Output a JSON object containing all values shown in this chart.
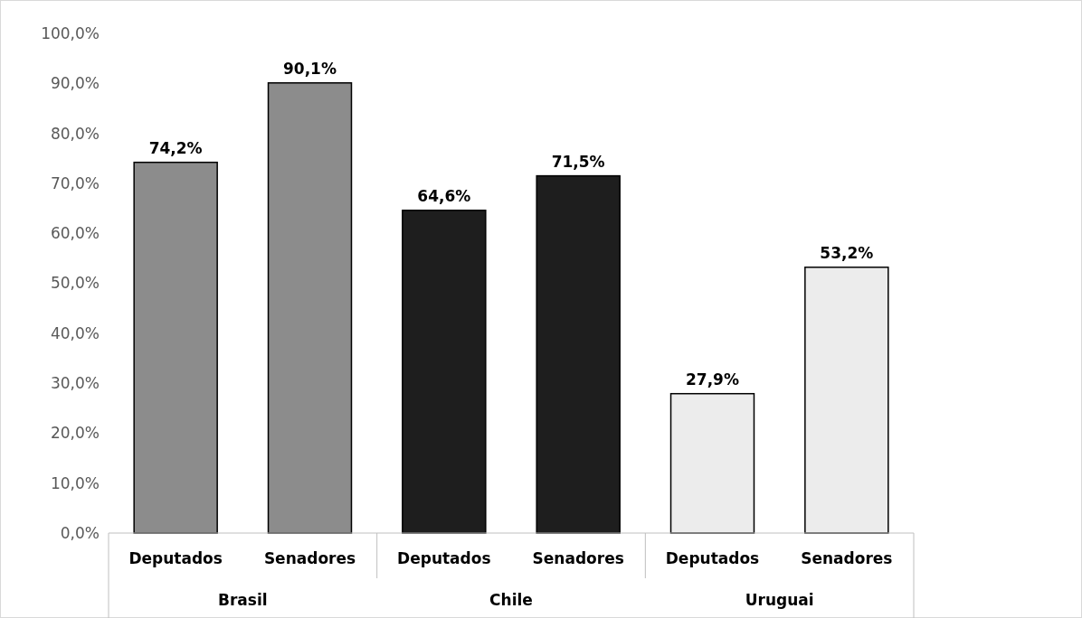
{
  "chart_data": {
    "type": "bar",
    "categories": [
      "Deputados",
      "Senadores",
      "Deputados",
      "Senadores",
      "Deputados",
      "Senadores"
    ],
    "values": [
      74.2,
      90.1,
      64.6,
      71.5,
      27.9,
      53.2
    ],
    "colors": [
      "#8c8c8c",
      "#8c8c8c",
      "#1e1e1e",
      "#1e1e1e",
      "#ececec",
      "#ececec"
    ],
    "value_labels": [
      "74,2%",
      "90,1%",
      "64,6%",
      "71,5%",
      "27,9%",
      "53,2%"
    ],
    "annotations": [
      "Brasil",
      "Chile",
      "Uruguai"
    ],
    "ylim": [
      0,
      100
    ],
    "yticks": [
      {
        "value": 0,
        "label": "0,0%"
      },
      {
        "value": 10,
        "label": "10,0%"
      },
      {
        "value": 20,
        "label": "20,0%"
      },
      {
        "value": 30,
        "label": "30,0%"
      },
      {
        "value": 40,
        "label": "40,0%"
      },
      {
        "value": 50,
        "label": "50,0%"
      },
      {
        "value": 60,
        "label": "60,0%"
      },
      {
        "value": 70,
        "label": "70,0%"
      },
      {
        "value": 80,
        "label": "80,0%"
      },
      {
        "value": 90,
        "label": "90,0%"
      },
      {
        "value": 100,
        "label": "100,0%"
      }
    ]
  }
}
